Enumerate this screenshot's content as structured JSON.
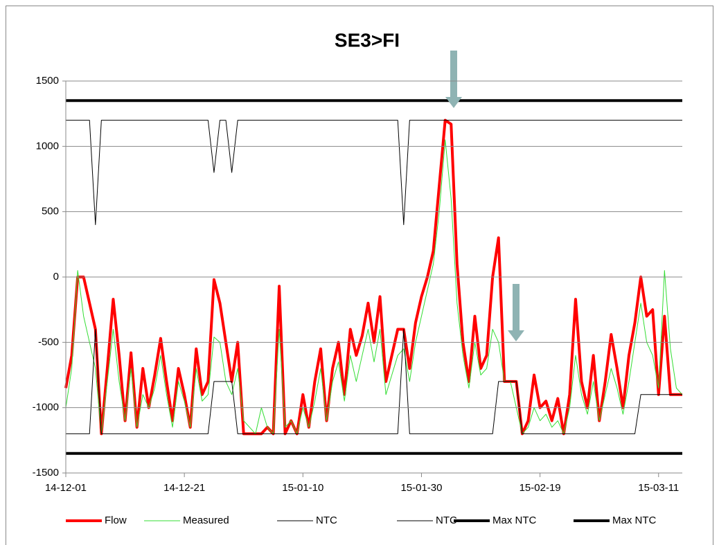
{
  "chart_data": {
    "type": "line",
    "title": "SE3>FI",
    "x": [
      "14-12-01",
      "14-12-02",
      "14-12-03",
      "14-12-04",
      "14-12-05",
      "14-12-06",
      "14-12-07",
      "14-12-08",
      "14-12-09",
      "14-12-10",
      "14-12-11",
      "14-12-12",
      "14-12-13",
      "14-12-14",
      "14-12-15",
      "14-12-16",
      "14-12-17",
      "14-12-18",
      "14-12-19",
      "14-12-20",
      "14-12-21",
      "14-12-22",
      "14-12-23",
      "14-12-24",
      "14-12-25",
      "14-12-26",
      "14-12-27",
      "14-12-28",
      "14-12-29",
      "14-12-30",
      "14-12-31",
      "15-01-01",
      "15-01-02",
      "15-01-03",
      "15-01-04",
      "15-01-05",
      "15-01-06",
      "15-01-07",
      "15-01-08",
      "15-01-09",
      "15-01-10",
      "15-01-11",
      "15-01-12",
      "15-01-13",
      "15-01-14",
      "15-01-15",
      "15-01-16",
      "15-01-17",
      "15-01-18",
      "15-01-19",
      "15-01-20",
      "15-01-21",
      "15-01-22",
      "15-01-23",
      "15-01-24",
      "15-01-25",
      "15-01-26",
      "15-01-27",
      "15-01-28",
      "15-01-29",
      "15-01-30",
      "15-01-31",
      "15-02-01",
      "15-02-02",
      "15-02-03",
      "15-02-04",
      "15-02-05",
      "15-02-06",
      "15-02-07",
      "15-02-08",
      "15-02-09",
      "15-02-10",
      "15-02-11",
      "15-02-12",
      "15-02-13",
      "15-02-14",
      "15-02-15",
      "15-02-16",
      "15-02-17",
      "15-02-18",
      "15-02-19",
      "15-02-20",
      "15-02-21",
      "15-02-22",
      "15-02-23",
      "15-02-24",
      "15-02-25",
      "15-02-26",
      "15-02-27",
      "15-02-28",
      "15-03-01",
      "15-03-02",
      "15-03-03",
      "15-03-04",
      "15-03-05",
      "15-03-06",
      "15-03-07",
      "15-03-08",
      "15-03-09",
      "15-03-10",
      "15-03-11",
      "15-03-12",
      "15-03-13",
      "15-03-14",
      "15-03-15"
    ],
    "xlim": [
      "14-12-01",
      "15-03-15"
    ],
    "xticks": [
      "14-12-01",
      "14-12-21",
      "15-01-10",
      "15-01-30",
      "15-02-19",
      "15-03-11"
    ],
    "ylim": [
      -1500,
      1500
    ],
    "yticks": [
      -1500,
      -1000,
      -500,
      0,
      500,
      1000,
      1500
    ],
    "grid": true,
    "legend": "bottom",
    "series": [
      {
        "name": "Flow",
        "color": "#ff0000",
        "width": 4,
        "values": [
          -850,
          -600,
          0,
          0,
          -200,
          -400,
          -1200,
          -700,
          -170,
          -600,
          -1100,
          -580,
          -1150,
          -700,
          -1000,
          -750,
          -470,
          -800,
          -1100,
          -700,
          -900,
          -1150,
          -550,
          -900,
          -800,
          -20,
          -200,
          -500,
          -800,
          -500,
          -1200,
          -1200,
          -1200,
          -1200,
          -1150,
          -1200,
          -70,
          -1200,
          -1100,
          -1200,
          -900,
          -1150,
          -800,
          -550,
          -1100,
          -700,
          -500,
          -900,
          -400,
          -600,
          -450,
          -200,
          -500,
          -150,
          -800,
          -600,
          -400,
          -400,
          -700,
          -350,
          -150,
          0,
          200,
          700,
          1200,
          1170,
          100,
          -500,
          -800,
          -300,
          -700,
          -600,
          0,
          300,
          -800,
          -800,
          -800,
          -1200,
          -1100,
          -750,
          -1000,
          -950,
          -1100,
          -930,
          -1200,
          -900,
          -170,
          -800,
          -1000,
          -600,
          -1100,
          -800,
          -440,
          -700,
          -1000,
          -600,
          -350,
          0,
          -300,
          -250,
          -900,
          -300,
          -900,
          -900,
          -900
        ]
      },
      {
        "name": "Measured",
        "color": "#33dd33",
        "width": 1,
        "values": [
          -1000,
          -700,
          50,
          -300,
          -500,
          -700,
          -1200,
          -800,
          -400,
          -800,
          -1100,
          -700,
          -1150,
          -900,
          -1000,
          -850,
          -600,
          -900,
          -1150,
          -800,
          -950,
          -1150,
          -700,
          -950,
          -900,
          -460,
          -500,
          -800,
          -900,
          -700,
          -1100,
          -1150,
          -1200,
          -1000,
          -1150,
          -1200,
          -400,
          -1150,
          -1100,
          -1200,
          -1000,
          -1150,
          -950,
          -700,
          -1100,
          -800,
          -650,
          -950,
          -600,
          -800,
          -600,
          -400,
          -650,
          -400,
          -900,
          -750,
          -600,
          -550,
          -800,
          -500,
          -300,
          -100,
          100,
          500,
          1050,
          600,
          -200,
          -600,
          -850,
          -500,
          -750,
          -700,
          -400,
          -500,
          -800,
          -800,
          -1000,
          -1200,
          -1150,
          -1000,
          -1100,
          -1050,
          -1150,
          -1100,
          -1200,
          -1000,
          -600,
          -900,
          -1050,
          -800,
          -1100,
          -900,
          -700,
          -850,
          -1050,
          -800,
          -500,
          -200,
          -500,
          -600,
          -850,
          50,
          -550,
          -850,
          -900
        ]
      },
      {
        "name": "NTC",
        "color": "#000000",
        "width": 1,
        "values": [
          1200,
          1200,
          1200,
          1200,
          1200,
          400,
          1200,
          1200,
          1200,
          1200,
          1200,
          1200,
          1200,
          1200,
          1200,
          1200,
          1200,
          1200,
          1200,
          1200,
          1200,
          1200,
          1200,
          1200,
          1200,
          800,
          1200,
          1200,
          800,
          1200,
          1200,
          1200,
          1200,
          1200,
          1200,
          1200,
          1200,
          1200,
          1200,
          1200,
          1200,
          1200,
          1200,
          1200,
          1200,
          1200,
          1200,
          1200,
          1200,
          1200,
          1200,
          1200,
          1200,
          1200,
          1200,
          1200,
          1200,
          400,
          1200,
          1200,
          1200,
          1200,
          1200,
          1200,
          1200,
          1200,
          1200,
          1200,
          1200,
          1200,
          1200,
          1200,
          1200,
          1200,
          1200,
          1200,
          1200,
          1200,
          1200,
          1200,
          1200,
          1200,
          1200,
          1200,
          1200,
          1200,
          1200,
          1200,
          1200,
          1200,
          1200,
          1200,
          1200,
          1200,
          1200,
          1200,
          1200,
          1200,
          1200,
          1200,
          1200,
          1200,
          1200,
          1200,
          1200
        ]
      },
      {
        "name": "NTC",
        "color": "#000000",
        "width": 1,
        "values": [
          -1200,
          -1200,
          -1200,
          -1200,
          -1200,
          -400,
          -1200,
          -1200,
          -1200,
          -1200,
          -1200,
          -1200,
          -1200,
          -1200,
          -1200,
          -1200,
          -1200,
          -1200,
          -1200,
          -1200,
          -1200,
          -1200,
          -1200,
          -1200,
          -1200,
          -800,
          -800,
          -800,
          -800,
          -1200,
          -1200,
          -1200,
          -1200,
          -1200,
          -1200,
          -1200,
          -1200,
          -1200,
          -1200,
          -1200,
          -1200,
          -1200,
          -1200,
          -1200,
          -1200,
          -1200,
          -1200,
          -1200,
          -1200,
          -1200,
          -1200,
          -1200,
          -1200,
          -1200,
          -1200,
          -1200,
          -1200,
          -400,
          -1200,
          -1200,
          -1200,
          -1200,
          -1200,
          -1200,
          -1200,
          -1200,
          -1200,
          -1200,
          -1200,
          -1200,
          -1200,
          -1200,
          -1200,
          -800,
          -800,
          -800,
          -800,
          -1200,
          -1200,
          -1200,
          -1200,
          -1200,
          -1200,
          -1200,
          -1200,
          -1200,
          -1200,
          -1200,
          -1200,
          -1200,
          -1200,
          -1200,
          -1200,
          -1200,
          -1200,
          -1200,
          -1200,
          -900,
          -900,
          -900,
          -900,
          -900,
          -900,
          -900,
          -900
        ]
      },
      {
        "name": "Max NTC",
        "color": "#000000",
        "width": 4,
        "values": [
          1350,
          1350,
          1350,
          1350,
          1350,
          1350,
          1350,
          1350,
          1350,
          1350,
          1350,
          1350,
          1350,
          1350,
          1350,
          1350,
          1350,
          1350,
          1350,
          1350,
          1350,
          1350,
          1350,
          1350,
          1350,
          1350,
          1350,
          1350,
          1350,
          1350,
          1350,
          1350,
          1350,
          1350,
          1350,
          1350,
          1350,
          1350,
          1350,
          1350,
          1350,
          1350,
          1350,
          1350,
          1350,
          1350,
          1350,
          1350,
          1350,
          1350,
          1350,
          1350,
          1350,
          1350,
          1350,
          1350,
          1350,
          1350,
          1350,
          1350,
          1350,
          1350,
          1350,
          1350,
          1350,
          1350,
          1350,
          1350,
          1350,
          1350,
          1350,
          1350,
          1350,
          1350,
          1350,
          1350,
          1350,
          1350,
          1350,
          1350,
          1350,
          1350,
          1350,
          1350,
          1350,
          1350,
          1350,
          1350,
          1350,
          1350,
          1350,
          1350,
          1350,
          1350,
          1350,
          1350,
          1350,
          1350,
          1350,
          1350,
          1350,
          1350,
          1350,
          1350,
          1350
        ]
      },
      {
        "name": "Max NTC",
        "color": "#000000",
        "width": 4,
        "values": [
          -1350,
          -1350,
          -1350,
          -1350,
          -1350,
          -1350,
          -1350,
          -1350,
          -1350,
          -1350,
          -1350,
          -1350,
          -1350,
          -1350,
          -1350,
          -1350,
          -1350,
          -1350,
          -1350,
          -1350,
          -1350,
          -1350,
          -1350,
          -1350,
          -1350,
          -1350,
          -1350,
          -1350,
          -1350,
          -1350,
          -1350,
          -1350,
          -1350,
          -1350,
          -1350,
          -1350,
          -1350,
          -1350,
          -1350,
          -1350,
          -1350,
          -1350,
          -1350,
          -1350,
          -1350,
          -1350,
          -1350,
          -1350,
          -1350,
          -1350,
          -1350,
          -1350,
          -1350,
          -1350,
          -1350,
          -1350,
          -1350,
          -1350,
          -1350,
          -1350,
          -1350,
          -1350,
          -1350,
          -1350,
          -1350,
          -1350,
          -1350,
          -1350,
          -1350,
          -1350,
          -1350,
          -1350,
          -1350,
          -1350,
          -1350,
          -1350,
          -1350,
          -1350,
          -1350,
          -1350,
          -1350,
          -1350,
          -1350,
          -1350,
          -1350,
          -1350,
          -1350,
          -1350,
          -1350,
          -1350,
          -1350,
          -1350,
          -1350,
          -1350,
          -1350,
          -1350,
          -1350,
          -1350,
          -1350,
          -1350,
          -1350,
          -1350,
          -1350,
          -1350,
          -1350
        ]
      }
    ]
  }
}
